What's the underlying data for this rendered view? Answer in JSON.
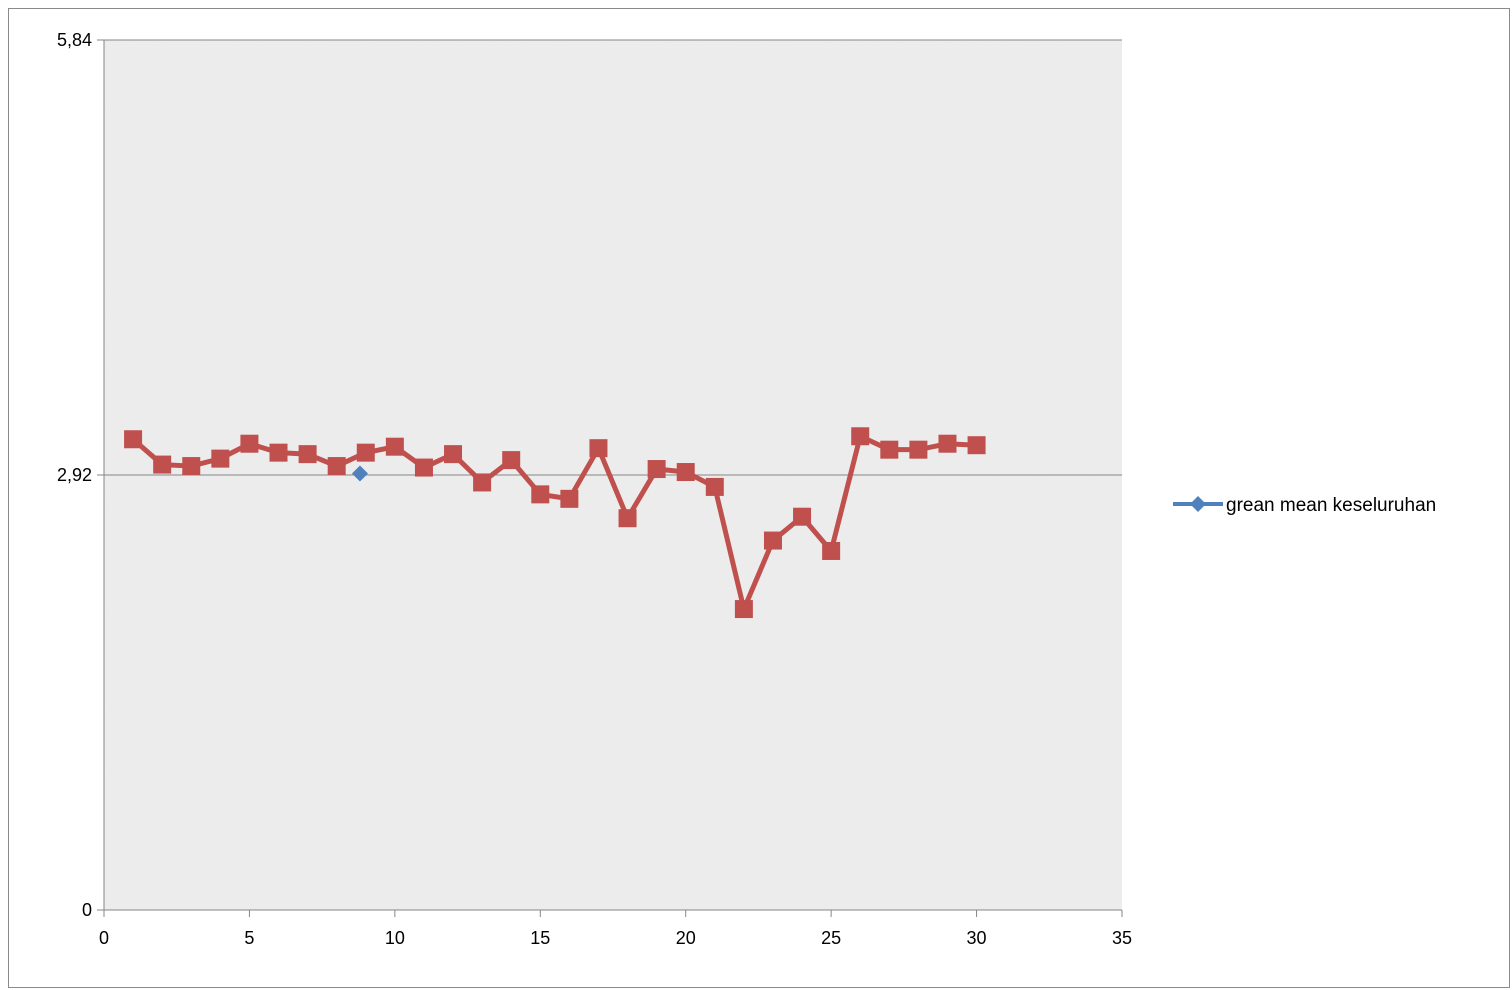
{
  "chart_data": {
    "type": "scatter",
    "title": "",
    "xlabel": "",
    "ylabel": "",
    "xlim": [
      0,
      35
    ],
    "ylim": [
      0,
      5.84
    ],
    "x_ticks": [
      0,
      5,
      10,
      15,
      20,
      25,
      30,
      35
    ],
    "x_tick_labels": [
      "0",
      "5",
      "10",
      "15",
      "20",
      "25",
      "30",
      "35"
    ],
    "y_ticks": [
      0,
      2.92,
      5.84
    ],
    "y_tick_labels": [
      "0",
      "2,92",
      "5,84"
    ],
    "grid": "horizontal at y ticks",
    "legend_position": "right",
    "series": [
      {
        "name": "grean mean keseluruhan",
        "color": "#4f81bd",
        "marker": "diamond",
        "in_legend": true,
        "x": [
          8.8
        ],
        "y": [
          2.93
        ]
      },
      {
        "color": "#c0504d",
        "marker": "square",
        "in_legend": false,
        "x": [
          1,
          2,
          3,
          4,
          5,
          6,
          7,
          8,
          9,
          10,
          11,
          12,
          13,
          14,
          15,
          16,
          17,
          18,
          19,
          20,
          21,
          22,
          23,
          24,
          25,
          26,
          27,
          28,
          29,
          30
        ],
        "y": [
          3.16,
          2.99,
          2.98,
          3.03,
          3.13,
          3.07,
          3.06,
          2.98,
          3.07,
          3.11,
          2.97,
          3.06,
          2.87,
          3.02,
          2.79,
          2.76,
          3.1,
          2.63,
          2.96,
          2.94,
          2.84,
          2.02,
          2.48,
          2.64,
          2.41,
          3.18,
          3.09,
          3.09,
          3.13,
          3.12
        ]
      }
    ]
  }
}
